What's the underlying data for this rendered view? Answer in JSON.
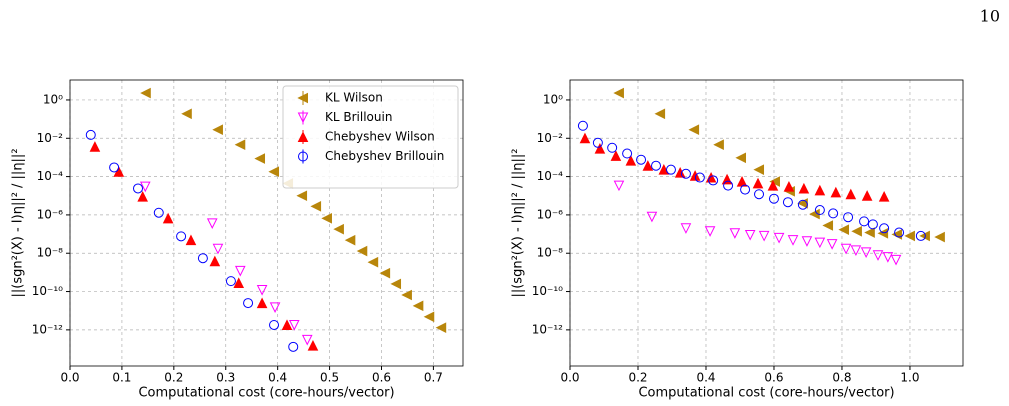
{
  "page_number": "10",
  "chart_data": [
    {
      "type": "scatter",
      "xlabel": "Computational cost (core-hours/vector)",
      "ylabel": "||(sgn²(X) - I)η||² / ||η||²",
      "log_y": true,
      "grid": true,
      "legend": "upper right",
      "xlim": [
        0,
        0.757
      ],
      "ylim": [
        1.3e-14,
        11
      ],
      "xticks": [
        {
          "value": 0,
          "label": "0.0"
        },
        0.1,
        0.2,
        0.3,
        0.4,
        0.5,
        0.6,
        0.7
      ],
      "yticks": [
        {
          "value": 1,
          "label": "10⁰"
        },
        {
          "value": 0.01,
          "label": "10⁻²"
        },
        {
          "value": 0.0001,
          "label": "10⁻⁴"
        },
        {
          "value": 1e-06,
          "label": "10⁻⁶"
        },
        {
          "value": 1e-08,
          "label": "10⁻⁸"
        },
        {
          "value": 1e-10,
          "label": "10⁻¹⁰"
        },
        {
          "value": 1e-12,
          "label": "10⁻¹²"
        }
      ],
      "series": [
        {
          "name": "KL Wilson",
          "color": "#b8860b",
          "marker": "<",
          "filled": true,
          "x": [
            0.146,
            0.225,
            0.285,
            0.328,
            0.366,
            0.393,
            0.42,
            0.447,
            0.474,
            0.495,
            0.518,
            0.54,
            0.563,
            0.584,
            0.607,
            0.628,
            0.649,
            0.671,
            0.692,
            0.715
          ],
          "values": [
            2.3,
            0.19,
            0.028,
            0.0046,
            0.00087,
            0.00018,
            4.4e-05,
            1e-05,
            2.8e-06,
            6.6e-07,
            1.8e-07,
            4.8e-08,
            1.3e-08,
            3.4e-09,
            9.1e-10,
            2.5e-10,
            6.6e-11,
            1.8e-11,
            4.8e-12,
            1.3e-12
          ]
        },
        {
          "name": "KL Brillouin",
          "color": "#ff00ff",
          "marker": "v",
          "filled": false,
          "x": [
            0.145,
            0.274,
            0.285,
            0.328,
            0.37,
            0.395,
            0.432,
            0.457
          ],
          "values": [
            3e-05,
            3.6e-07,
            1.7e-08,
            1.2e-09,
            1.2e-10,
            1.5e-11,
            1.8e-12,
            3e-13
          ]
        },
        {
          "name": "Chebyshev Wilson",
          "color": "#ff0000",
          "marker": "^",
          "filled": true,
          "x": [
            0.048,
            0.094,
            0.14,
            0.189,
            0.233,
            0.279,
            0.325,
            0.37,
            0.418,
            0.468
          ],
          "values": [
            0.0036,
            0.00018,
            9e-06,
            6.6e-07,
            4.8e-08,
            3.8e-09,
            2.8e-10,
            2.5e-11,
            1.8e-12,
            1.5e-13
          ]
        },
        {
          "name": "Chebyshev Brillouin",
          "color": "#0000ff",
          "marker": "o",
          "filled": false,
          "x": [
            0.04,
            0.085,
            0.131,
            0.171,
            0.214,
            0.256,
            0.31,
            0.343,
            0.393,
            0.43
          ],
          "values": [
            0.015,
            0.0003,
            2.4e-05,
            1.3e-06,
            7.6e-08,
            5.5e-09,
            3.5e-10,
            2.5e-11,
            1.8e-12,
            1.3e-13
          ]
        }
      ]
    },
    {
      "type": "scatter",
      "xlabel": "Computational cost (core-hours/vector)",
      "ylabel": "||(sgn²(X) - I)η||² / ||η||²",
      "log_y": true,
      "grid": true,
      "xlim": [
        0,
        1.156
      ],
      "ylim": [
        1.3e-14,
        11
      ],
      "xticks": [
        {
          "value": 0,
          "label": "0.0"
        },
        0.2,
        0.4,
        0.6,
        0.8,
        {
          "value": 1,
          "label": "1.0"
        }
      ],
      "yticks": [
        {
          "value": 1,
          "label": "10⁰"
        },
        {
          "value": 0.01,
          "label": "10⁻²"
        },
        {
          "value": 0.0001,
          "label": "10⁻⁴"
        },
        {
          "value": 1e-06,
          "label": "10⁻⁶"
        },
        {
          "value": 1e-08,
          "label": "10⁻⁸"
        },
        {
          "value": 1e-10,
          "label": "10⁻¹⁰"
        },
        {
          "value": 1e-12,
          "label": "10⁻¹²"
        }
      ],
      "series": [
        {
          "name": "KL Wilson",
          "color": "#b8860b",
          "marker": "<",
          "filled": true,
          "x": [
            0.144,
            0.265,
            0.365,
            0.438,
            0.503,
            0.556,
            0.603,
            0.647,
            0.685,
            0.72,
            0.759,
            0.806,
            0.844,
            0.882,
            0.921,
            0.962,
            1.0,
            1.044,
            1.088
          ],
          "values": [
            2.3,
            0.19,
            0.028,
            0.0046,
            0.00096,
            0.00023,
            5.5e-05,
            1.7e-05,
            4e-06,
            1.1e-06,
            2.8e-07,
            1.7e-07,
            1.4e-07,
            1.2e-07,
            1.1e-07,
            9.6e-08,
            8e-08,
            8e-08,
            7e-08
          ]
        },
        {
          "name": "KL Brillouin",
          "color": "#ff00ff",
          "marker": "v",
          "filled": false,
          "x": [
            0.144,
            0.241,
            0.341,
            0.412,
            0.485,
            0.53,
            0.571,
            0.615,
            0.656,
            0.697,
            0.735,
            0.771,
            0.812,
            0.841,
            0.871,
            0.906,
            0.935,
            0.959
          ],
          "values": [
            3.4e-05,
            8e-07,
            2e-07,
            1.4e-07,
            1.1e-07,
            9e-08,
            8e-08,
            6.3e-08,
            4.8e-08,
            4.2e-08,
            3.6e-08,
            3e-08,
            1.7e-08,
            1.4e-08,
            1.1e-08,
            7.8e-09,
            6.3e-09,
            4.5e-09
          ]
        },
        {
          "name": "Chebyshev Wilson",
          "color": "#ff0000",
          "marker": "^",
          "filled": true,
          "x": [
            0.044,
            0.088,
            0.135,
            0.179,
            0.229,
            0.276,
            0.324,
            0.368,
            0.415,
            0.462,
            0.506,
            0.553,
            0.597,
            0.644,
            0.688,
            0.735,
            0.782,
            0.826,
            0.874,
            0.924
          ],
          "values": [
            0.01,
            0.0029,
            0.0012,
            0.00068,
            0.00037,
            0.00023,
            0.00016,
            0.00011,
            8.9e-05,
            7.2e-05,
            5.5e-05,
            4.4e-05,
            3.4e-05,
            3e-05,
            2.4e-05,
            1.9e-05,
            1.5e-05,
            1.2e-05,
            1e-05,
            9e-06
          ]
        },
        {
          "name": "Chebyshev Brillouin",
          "color": "#0000ff",
          "marker": "o",
          "filled": false,
          "x": [
            0.038,
            0.082,
            0.124,
            0.168,
            0.209,
            0.253,
            0.297,
            0.341,
            0.382,
            0.421,
            0.465,
            0.515,
            0.556,
            0.6,
            0.641,
            0.685,
            0.735,
            0.774,
            0.818,
            0.865,
            0.891,
            0.924,
            0.968,
            1.032
          ],
          "values": [
            0.045,
            0.0058,
            0.0032,
            0.0016,
            0.00076,
            0.00037,
            0.00023,
            0.00014,
            8.9e-05,
            6.3e-05,
            3.4e-05,
            2.1e-05,
            1.2e-05,
            7e-06,
            4.6e-06,
            3.4e-06,
            1.8e-06,
            1.2e-06,
            7.6e-07,
            4.6e-07,
            3.2e-07,
            2e-07,
            1.2e-07,
            8e-08
          ]
        }
      ]
    }
  ]
}
